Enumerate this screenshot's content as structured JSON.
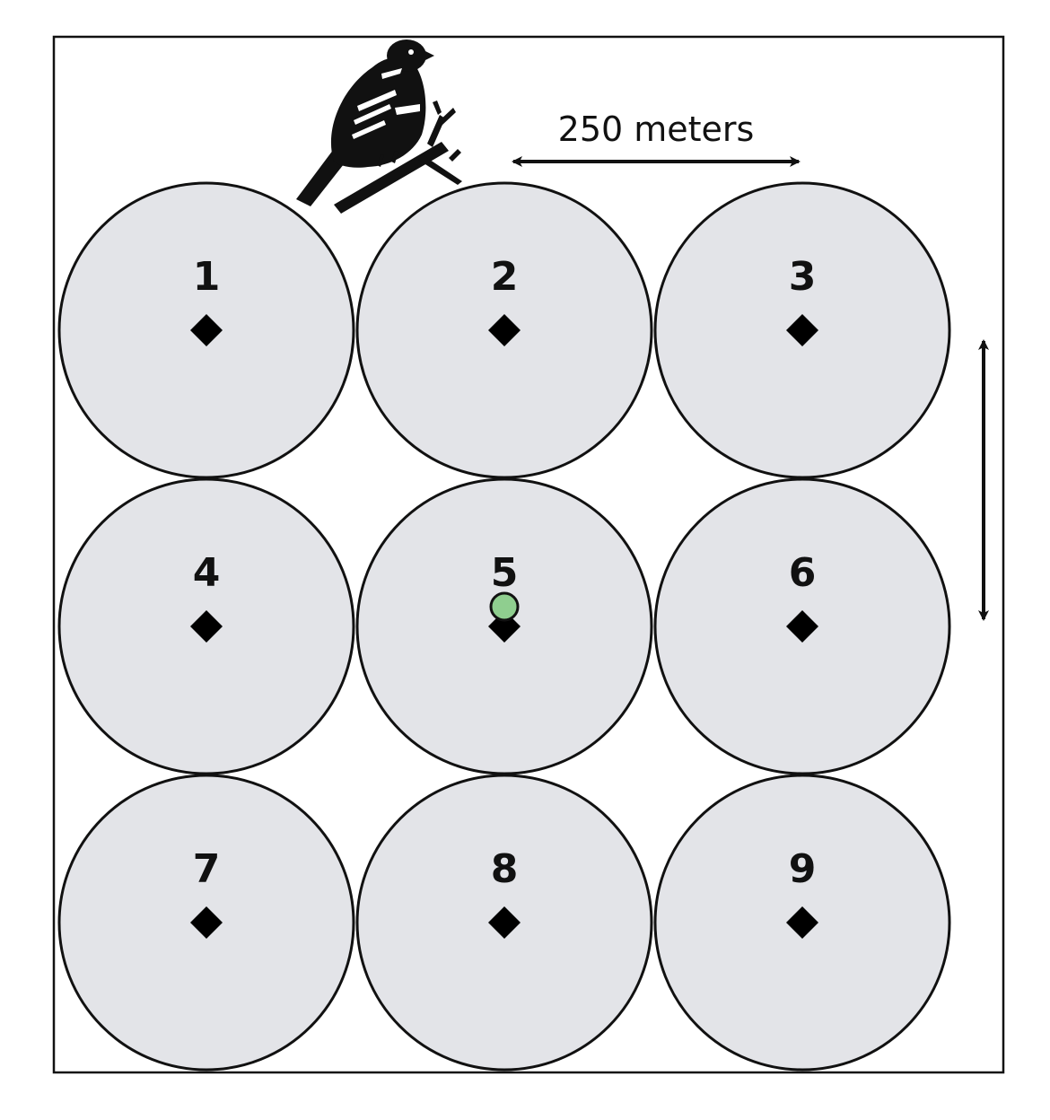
{
  "diagram": {
    "scale_label": "250 meters",
    "plots": [
      {
        "label": "1",
        "row": 0,
        "col": 0,
        "marker": false
      },
      {
        "label": "2",
        "row": 0,
        "col": 1,
        "marker": false
      },
      {
        "label": "3",
        "row": 0,
        "col": 2,
        "marker": false
      },
      {
        "label": "4",
        "row": 1,
        "col": 0,
        "marker": false
      },
      {
        "label": "5",
        "row": 1,
        "col": 1,
        "marker": true
      },
      {
        "label": "6",
        "row": 1,
        "col": 2,
        "marker": false
      },
      {
        "label": "7",
        "row": 2,
        "col": 0,
        "marker": false
      },
      {
        "label": "8",
        "row": 2,
        "col": 1,
        "marker": false
      },
      {
        "label": "9",
        "row": 2,
        "col": 2,
        "marker": false
      }
    ],
    "colors": {
      "circle_fill": "#e3e4e8",
      "stroke": "#111111",
      "marker_fill": "#8fce8f",
      "center_point": "#000000"
    },
    "icons": {
      "bird": "bird-on-branch-icon",
      "center": "diamond-icon"
    }
  }
}
